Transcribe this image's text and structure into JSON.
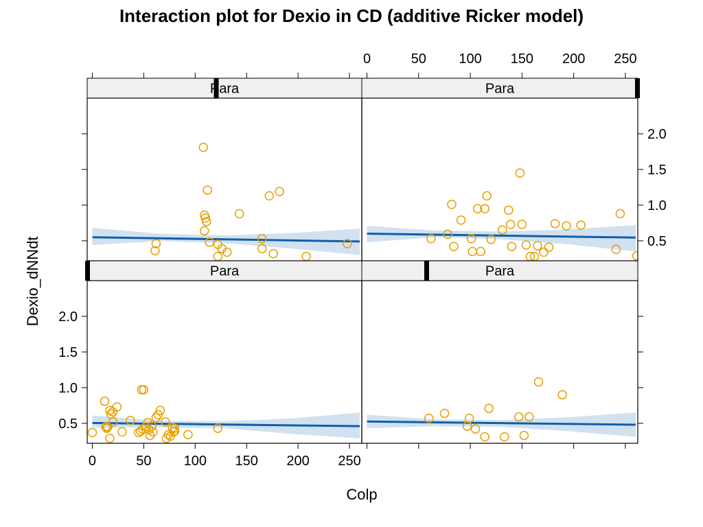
{
  "chart_data": {
    "type": "scatter",
    "title": "Interaction plot for Dexio in CD (additive Ricker model)",
    "xlabel": "Colp",
    "ylabel": "Dexio_dNNdt",
    "xlim": [
      -5,
      262
    ],
    "ylim": [
      0.22,
      2.5
    ],
    "x_ticks": [
      0,
      50,
      100,
      150,
      200,
      250
    ],
    "y_ticks": [
      0.5,
      1.0,
      1.5,
      2.0
    ],
    "x_tick_labels": [
      "0",
      "50",
      "100",
      "150",
      "200",
      "250"
    ],
    "y_tick_labels": [
      "0.5",
      "1.0",
      "1.5",
      "2.0"
    ],
    "grid": false,
    "colors": {
      "points": "#E69F00",
      "fit_line": "#0F5FA8",
      "band": "#C9DCEC",
      "strip_bg": "#F0F0F0",
      "strip_marker": "#000000"
    },
    "panels": [
      {
        "row": "bottom",
        "col": "left",
        "strip_label": "Para",
        "strip_marker_frac": 0.0,
        "fit": {
          "x": [
            0,
            260
          ],
          "y": [
            0.505,
            0.46
          ]
        },
        "band": {
          "x": [
            0,
            65,
            130,
            195,
            260
          ],
          "upper": [
            0.61,
            0.535,
            0.53,
            0.57,
            0.65
          ],
          "lower": [
            0.44,
            0.445,
            0.43,
            0.35,
            0.29
          ]
        },
        "points": [
          {
            "x": 0,
            "y": 0.37
          },
          {
            "x": 12,
            "y": 0.81
          },
          {
            "x": 13,
            "y": 0.45
          },
          {
            "x": 14,
            "y": 0.43
          },
          {
            "x": 15,
            "y": 0.45
          },
          {
            "x": 17,
            "y": 0.68
          },
          {
            "x": 17,
            "y": 0.29
          },
          {
            "x": 18,
            "y": 0.63
          },
          {
            "x": 20,
            "y": 0.52
          },
          {
            "x": 20,
            "y": 0.66
          },
          {
            "x": 24,
            "y": 0.73
          },
          {
            "x": 29,
            "y": 0.38
          },
          {
            "x": 37,
            "y": 0.54
          },
          {
            "x": 45,
            "y": 0.37
          },
          {
            "x": 47,
            "y": 0.39
          },
          {
            "x": 48,
            "y": 0.97
          },
          {
            "x": 49,
            "y": 0.42
          },
          {
            "x": 50,
            "y": 0.97
          },
          {
            "x": 52,
            "y": 0.45
          },
          {
            "x": 54,
            "y": 0.51
          },
          {
            "x": 55,
            "y": 0.41
          },
          {
            "x": 56,
            "y": 0.33
          },
          {
            "x": 58,
            "y": 0.46
          },
          {
            "x": 59,
            "y": 0.38
          },
          {
            "x": 62,
            "y": 0.58
          },
          {
            "x": 64,
            "y": 0.62
          },
          {
            "x": 66,
            "y": 0.68
          },
          {
            "x": 71,
            "y": 0.52
          },
          {
            "x": 72,
            "y": 0.29
          },
          {
            "x": 74,
            "y": 0.34
          },
          {
            "x": 76,
            "y": 0.32
          },
          {
            "x": 78,
            "y": 0.44
          },
          {
            "x": 79,
            "y": 0.38
          },
          {
            "x": 80,
            "y": 0.43
          },
          {
            "x": 80,
            "y": 0.39
          },
          {
            "x": 93,
            "y": 0.34
          },
          {
            "x": 122,
            "y": 0.43
          }
        ]
      },
      {
        "row": "bottom",
        "col": "right",
        "strip_label": "Para",
        "strip_marker_frac": 0.235,
        "fit": {
          "x": [
            0,
            260
          ],
          "y": [
            0.525,
            0.48
          ]
        },
        "band": {
          "x": [
            0,
            65,
            130,
            195,
            260
          ],
          "upper": [
            0.62,
            0.555,
            0.545,
            0.585,
            0.65
          ],
          "lower": [
            0.43,
            0.46,
            0.45,
            0.39,
            0.31
          ]
        },
        "points": [
          {
            "x": 60,
            "y": 0.57
          },
          {
            "x": 75,
            "y": 0.64
          },
          {
            "x": 97,
            "y": 0.46
          },
          {
            "x": 99,
            "y": 0.57
          },
          {
            "x": 105,
            "y": 0.42
          },
          {
            "x": 114,
            "y": 0.31
          },
          {
            "x": 118,
            "y": 0.71
          },
          {
            "x": 133,
            "y": 0.31
          },
          {
            "x": 147,
            "y": 0.59
          },
          {
            "x": 152,
            "y": 0.33
          },
          {
            "x": 157,
            "y": 0.59
          },
          {
            "x": 166,
            "y": 1.08
          },
          {
            "x": 189,
            "y": 0.9
          }
        ]
      },
      {
        "row": "top",
        "col": "left",
        "strip_label": "Para",
        "strip_marker_frac": 0.47,
        "fit": {
          "x": [
            0,
            260
          ],
          "y": [
            0.55,
            0.49
          ]
        },
        "band": {
          "x": [
            0,
            65,
            130,
            195,
            260
          ],
          "upper": [
            0.68,
            0.6,
            0.575,
            0.61,
            0.67
          ],
          "lower": [
            0.44,
            0.495,
            0.465,
            0.39,
            0.3
          ]
        },
        "points": [
          {
            "x": 108,
            "y": 1.81
          },
          {
            "x": 109,
            "y": 0.86
          },
          {
            "x": 110,
            "y": 0.82
          },
          {
            "x": 111,
            "y": 0.77
          },
          {
            "x": 109,
            "y": 0.64
          },
          {
            "x": 112,
            "y": 1.21
          },
          {
            "x": 114,
            "y": 0.48
          },
          {
            "x": 62,
            "y": 0.46
          },
          {
            "x": 61,
            "y": 0.36
          },
          {
            "x": 122,
            "y": 0.45
          },
          {
            "x": 126,
            "y": 0.39
          },
          {
            "x": 131,
            "y": 0.34
          },
          {
            "x": 122,
            "y": 0.28
          },
          {
            "x": 143,
            "y": 0.88
          },
          {
            "x": 165,
            "y": 0.53
          },
          {
            "x": 165,
            "y": 0.39
          },
          {
            "x": 172,
            "y": 1.13
          },
          {
            "x": 176,
            "y": 0.32
          },
          {
            "x": 182,
            "y": 1.19
          },
          {
            "x": 208,
            "y": 0.28
          },
          {
            "x": 248,
            "y": 0.46
          }
        ]
      },
      {
        "row": "top",
        "col": "right",
        "strip_label": "Para",
        "strip_marker_frac": 1.0,
        "fit": {
          "x": [
            0,
            260
          ],
          "y": [
            0.6,
            0.545
          ]
        },
        "band": {
          "x": [
            0,
            65,
            130,
            195,
            260
          ],
          "upper": [
            0.71,
            0.645,
            0.63,
            0.66,
            0.72
          ],
          "lower": [
            0.48,
            0.55,
            0.52,
            0.45,
            0.35
          ]
        },
        "points": [
          {
            "x": 62,
            "y": 0.53
          },
          {
            "x": 78,
            "y": 0.59
          },
          {
            "x": 82,
            "y": 1.01
          },
          {
            "x": 84,
            "y": 0.42
          },
          {
            "x": 91,
            "y": 0.79
          },
          {
            "x": 101,
            "y": 0.53
          },
          {
            "x": 102,
            "y": 0.35
          },
          {
            "x": 107,
            "y": 0.95
          },
          {
            "x": 110,
            "y": 0.35
          },
          {
            "x": 114,
            "y": 0.95
          },
          {
            "x": 116,
            "y": 1.13
          },
          {
            "x": 120,
            "y": 0.52
          },
          {
            "x": 131,
            "y": 0.65
          },
          {
            "x": 137,
            "y": 0.93
          },
          {
            "x": 139,
            "y": 0.73
          },
          {
            "x": 140,
            "y": 0.42
          },
          {
            "x": 148,
            "y": 1.45
          },
          {
            "x": 150,
            "y": 0.73
          },
          {
            "x": 154,
            "y": 0.44
          },
          {
            "x": 158,
            "y": 0.28
          },
          {
            "x": 162,
            "y": 0.28
          },
          {
            "x": 165,
            "y": 0.43
          },
          {
            "x": 171,
            "y": 0.34
          },
          {
            "x": 176,
            "y": 0.41
          },
          {
            "x": 182,
            "y": 0.74
          },
          {
            "x": 193,
            "y": 0.71
          },
          {
            "x": 207,
            "y": 0.72
          },
          {
            "x": 241,
            "y": 0.38
          },
          {
            "x": 245,
            "y": 0.88
          },
          {
            "x": 261,
            "y": 0.29
          }
        ]
      }
    ]
  }
}
